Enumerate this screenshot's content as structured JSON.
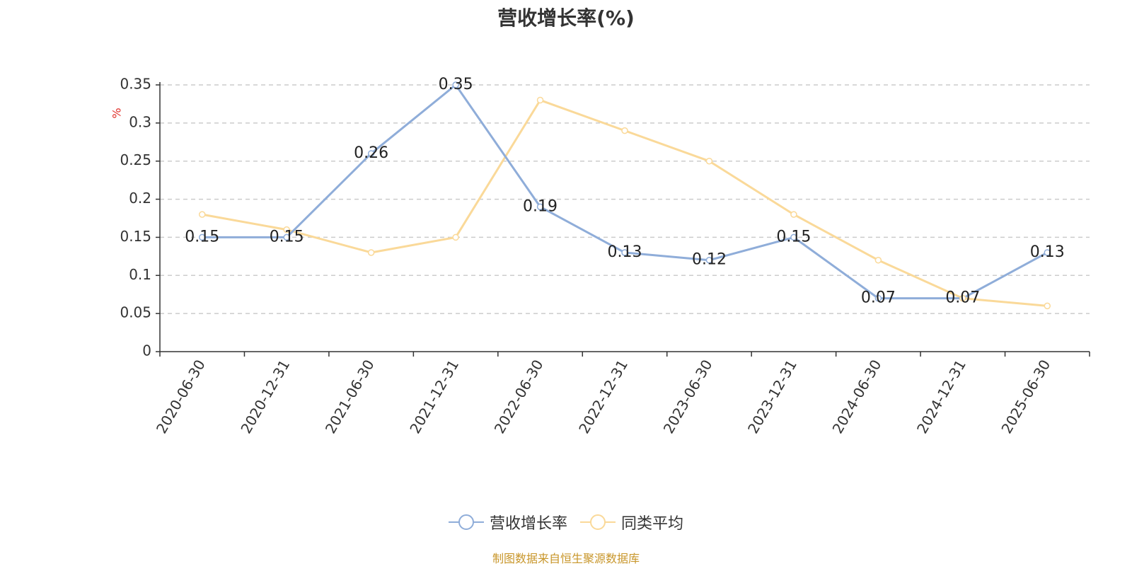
{
  "chart_data": {
    "type": "line",
    "title": "营收增长率(%)",
    "ylabel": "%",
    "xlabel": "",
    "ylim": [
      0,
      0.35
    ],
    "yticks": [
      "0",
      "0.05",
      "0.1",
      "0.15",
      "0.2",
      "0.25",
      "0.3",
      "0.35"
    ],
    "grid": true,
    "legend_position": "bottom",
    "categories": [
      "2020-06-30",
      "2020-12-31",
      "2021-06-30",
      "2021-12-31",
      "2022-06-30",
      "2022-12-31",
      "2023-06-30",
      "2023-12-31",
      "2024-06-30",
      "2024-12-31",
      "2025-06-30"
    ],
    "series": [
      {
        "name": "营收增长率",
        "color": "#8fadd9",
        "show_labels": true,
        "values": [
          0.15,
          0.15,
          0.26,
          0.35,
          0.19,
          0.13,
          0.12,
          0.15,
          0.07,
          0.07,
          0.13
        ]
      },
      {
        "name": "同类平均",
        "color": "#fad999",
        "show_labels": false,
        "values": [
          0.18,
          0.16,
          0.13,
          0.15,
          0.33,
          0.29,
          0.25,
          0.18,
          0.12,
          0.07,
          0.06
        ]
      }
    ]
  },
  "source_note": "制图数据来自恒生聚源数据库"
}
